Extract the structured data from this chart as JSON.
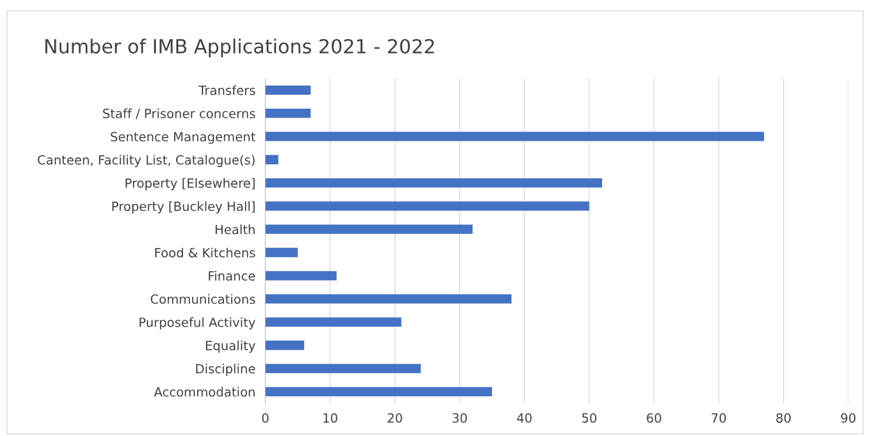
{
  "chart_data": {
    "type": "bar",
    "orientation": "horizontal",
    "title": "Number of IMB Applications 2021 - 2022",
    "categories": [
      "Transfers",
      "Staff / Prisoner concerns",
      "Sentence Management",
      "Canteen, Facility List, Catalogue(s)",
      "Property [Elsewhere]",
      "Property [Buckley Hall]",
      "Health",
      "Food & Kitchens",
      "Finance",
      "Communications",
      "Purposeful Activity",
      "Equality",
      "Discipline",
      "Accommodation"
    ],
    "values": [
      7,
      7,
      77,
      2,
      52,
      50,
      32,
      5,
      11,
      38,
      21,
      6,
      24,
      35
    ],
    "color": "#4472c4",
    "xlim": [
      0,
      90
    ],
    "xticks": [
      0,
      10,
      20,
      30,
      40,
      50,
      60,
      70,
      80,
      90
    ],
    "grid": "x"
  }
}
